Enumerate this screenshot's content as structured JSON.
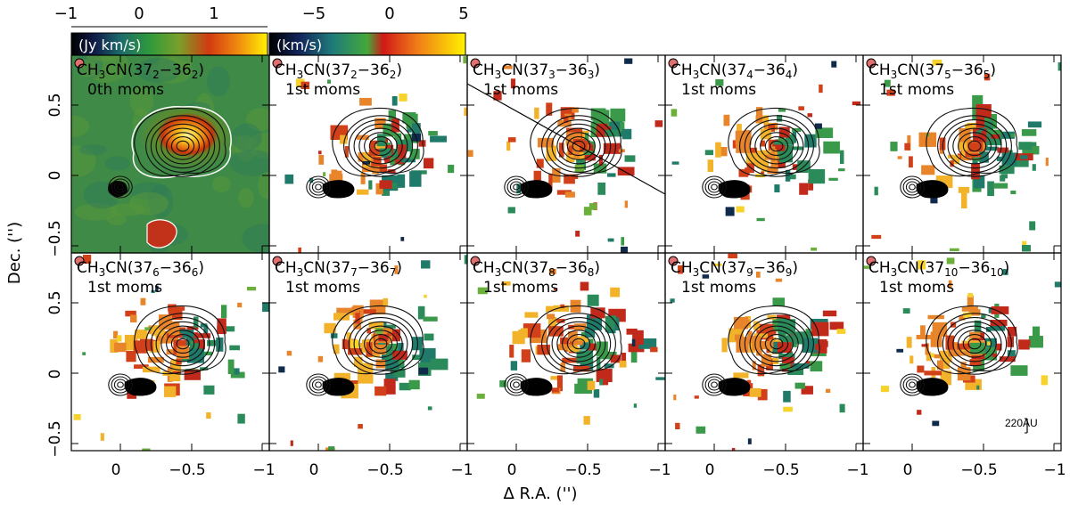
{
  "colorbars": {
    "intensity": {
      "unit": "(Jy km/s)",
      "ticks": [
        "−1",
        "0",
        "1"
      ]
    },
    "velocity": {
      "unit": "(km/s)",
      "ticks": [
        "−5",
        "0",
        "5"
      ]
    }
  },
  "axes": {
    "ylabel": "Dec. ('')",
    "xlabel": "Δ R.A. ('')",
    "y_ticks_top_row": [
      "0.5",
      "0",
      "−0.5"
    ],
    "y_ticks_bottom_row": [
      "0.5",
      "0",
      "−0.5"
    ],
    "x_ticks_first": [
      "0",
      "−0.5",
      "−1"
    ],
    "x_ticks_rest": [
      "0",
      "−0.5",
      "−1"
    ]
  },
  "panels": [
    {
      "species": "CH",
      "sub1": "3",
      "mid": "CN(37",
      "k_up": "2",
      "dash": "−36",
      "k_lo": "2",
      "close": ")",
      "moment": "0th moms"
    },
    {
      "species": "CH",
      "sub1": "3",
      "mid": "CN(37",
      "k_up": "2",
      "dash": "−36",
      "k_lo": "2",
      "close": ")",
      "moment": "1st moms"
    },
    {
      "species": "CH",
      "sub1": "3",
      "mid": "CN(37",
      "k_up": "3",
      "dash": "−36",
      "k_lo": "3",
      "close": ")",
      "moment": "1st moms"
    },
    {
      "species": "CH",
      "sub1": "3",
      "mid": "CN(37",
      "k_up": "4",
      "dash": "−36",
      "k_lo": "4",
      "close": ")",
      "moment": "1st moms"
    },
    {
      "species": "CH",
      "sub1": "3",
      "mid": "CN(37",
      "k_up": "5",
      "dash": "−36",
      "k_lo": "5",
      "close": ")",
      "moment": "1st moms"
    },
    {
      "species": "CH",
      "sub1": "3",
      "mid": "CN(37",
      "k_up": "6",
      "dash": "−36",
      "k_lo": "6",
      "close": ")",
      "moment": "1st moms"
    },
    {
      "species": "CH",
      "sub1": "3",
      "mid": "CN(37",
      "k_up": "7",
      "dash": "−36",
      "k_lo": "7",
      "close": ")",
      "moment": "1st moms"
    },
    {
      "species": "CH",
      "sub1": "3",
      "mid": "CN(37",
      "k_up": "8",
      "dash": "−36",
      "k_lo": "8",
      "close": ")",
      "moment": "1st moms"
    },
    {
      "species": "CH",
      "sub1": "3",
      "mid": "CN(37",
      "k_up": "9",
      "dash": "−36",
      "k_lo": "9",
      "close": ")",
      "moment": "1st moms"
    },
    {
      "species": "CH",
      "sub1": "3",
      "mid": "CN(37",
      "k_up": "10",
      "dash": "−36",
      "k_lo": "10",
      "close": ")",
      "moment": "1st moms"
    }
  ],
  "scalebar": {
    "label": "220AU"
  },
  "colors": {
    "moment0_bg": "#3f8a46",
    "contour": "#111111",
    "white_contour": "#ffffff",
    "beam": "#e07070"
  }
}
